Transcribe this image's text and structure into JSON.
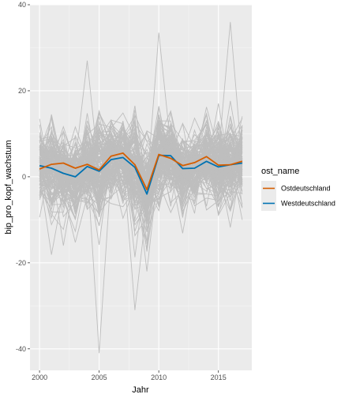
{
  "chart_data": {
    "type": "line",
    "title": "",
    "xlabel": "Jahr",
    "ylabel": "bip_pro_kopf_wachstum",
    "xlim": [
      1999.2,
      2017.8
    ],
    "ylim": [
      -45,
      40
    ],
    "x_ticks": [
      2000,
      2005,
      2010,
      2015
    ],
    "y_ticks": [
      -40,
      -20,
      0,
      20,
      40
    ],
    "x_tick_labels": [
      "2000",
      "2005",
      "2010",
      "2015"
    ],
    "y_tick_labels": [
      "-40",
      "-20",
      "0",
      "20",
      "40"
    ],
    "grid": true,
    "legend_position": "right",
    "legend_title": "ost_name",
    "x": [
      2000,
      2001,
      2002,
      2003,
      2004,
      2005,
      2006,
      2007,
      2008,
      2009,
      2010,
      2011,
      2012,
      2013,
      2014,
      2015,
      2016,
      2017
    ],
    "series": [
      {
        "name": "Ostdeutschland",
        "color": "#d55e00",
        "values": [
          1.8,
          2.9,
          3.2,
          2.0,
          2.9,
          1.6,
          4.8,
          5.5,
          2.8,
          -3.0,
          5.2,
          4.3,
          2.6,
          3.3,
          4.7,
          2.7,
          2.8,
          3.6
        ]
      },
      {
        "name": "Westdeutschland",
        "color": "#0072b2",
        "values": [
          2.6,
          2.0,
          0.8,
          0.0,
          2.4,
          1.3,
          4.0,
          4.5,
          2.2,
          -4.0,
          5.0,
          4.9,
          1.9,
          2.0,
          3.6,
          2.3,
          2.8,
          3.2
        ]
      }
    ],
    "background_lines_color": "#bebebe"
  }
}
